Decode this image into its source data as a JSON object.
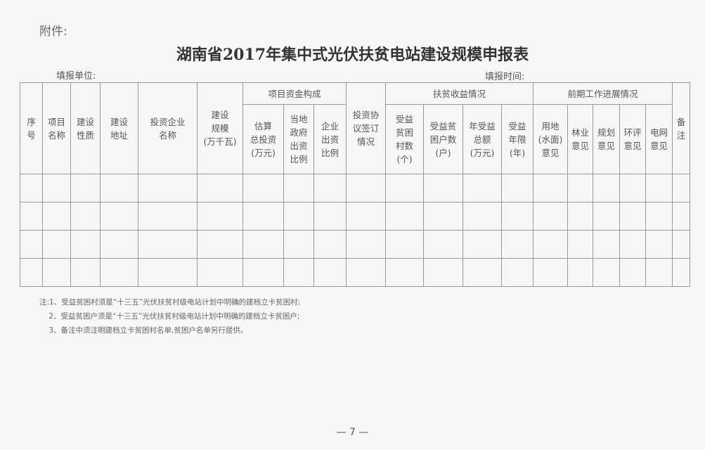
{
  "attachment_label": "附件:",
  "title": "湖南省2017年集中式光伏扶贫电站建设规模申报表",
  "fill_unit_label": "填报单位:",
  "fill_time_label": "填报时间:",
  "table": {
    "columns": [
      {
        "label": "序\n号",
        "rowspan": 2
      },
      {
        "label": "项目\n名称",
        "rowspan": 2
      },
      {
        "label": "建设\n性质",
        "rowspan": 2
      },
      {
        "label": "建设\n地址",
        "rowspan": 2
      },
      {
        "label": "投资企业\n名称",
        "rowspan": 2
      },
      {
        "label": "建设\n规模\n(万千瓦)",
        "rowspan": 2
      },
      {
        "label": "项目资金构成",
        "colspan": 3,
        "children": [
          "估算\n总投资\n(万元)",
          "当地\n政府\n出资\n比例",
          "企业\n出资\n比例"
        ]
      },
      {
        "label": "投资协\n议签订\n情况",
        "rowspan": 2
      },
      {
        "label": "扶贫收益情况",
        "colspan": 4,
        "children": [
          "受益\n贫困\n村数\n(个)",
          "受益贫\n困户数\n(户)",
          "年受益\n总额\n(万元)",
          "受益\n年限\n(年)"
        ]
      },
      {
        "label": "前期工作进展情况",
        "colspan": 5,
        "children": [
          "用地\n(水面)\n意见",
          "林业\n意见",
          "规划\n意见",
          "环评\n意见",
          "电网\n意见"
        ]
      },
      {
        "label": "备\n注",
        "rowspan": 2
      }
    ],
    "empty_rows": 4
  },
  "notes": [
    "注:1、受益贫困村须是“十三五”光伏扶贫村级电站计划中明确的建档立卡贫困村;",
    "    2、受益贫困户须是“十三五”光伏扶贫村级电站计划中明确的建档立卡贫困户;",
    "    3、备注中须注明建档立卡贫困村名单,贫困户名单另行提供。"
  ],
  "page_number": "— 7 —"
}
